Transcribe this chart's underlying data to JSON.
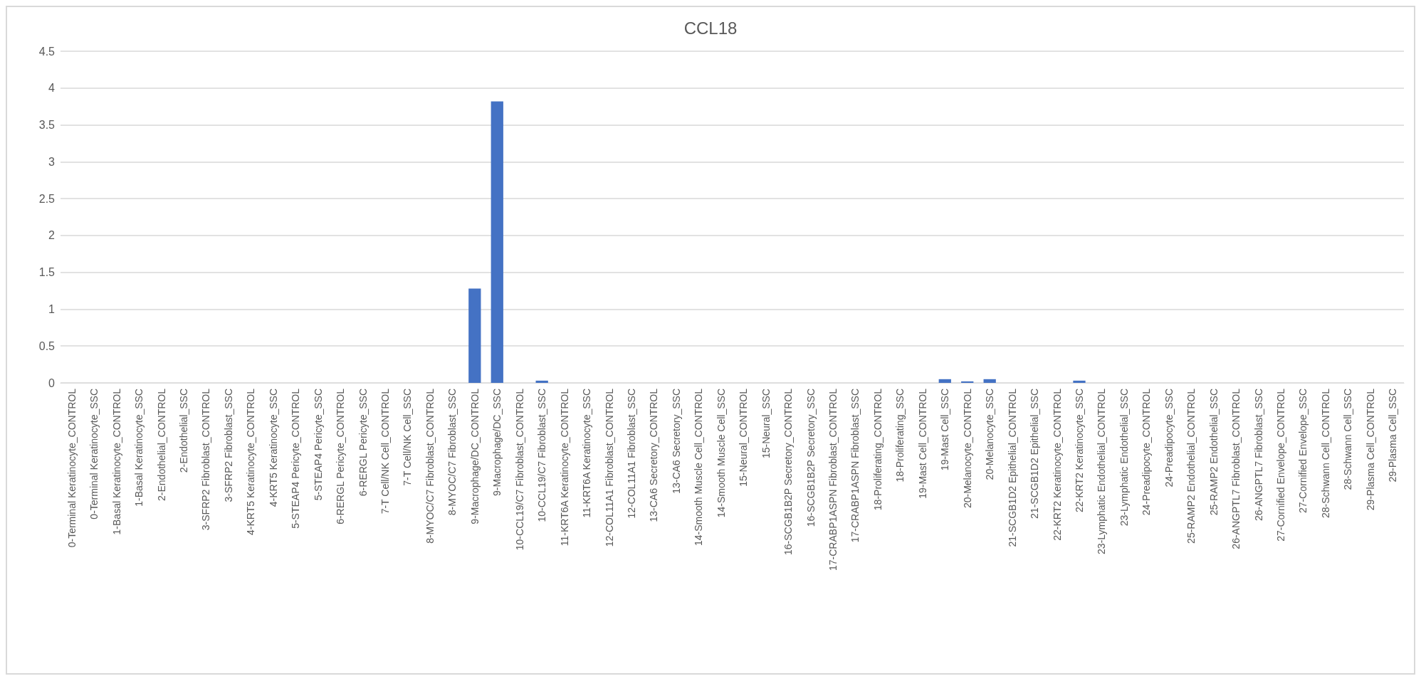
{
  "chart_data": {
    "type": "bar",
    "title": "CCL18",
    "categories": [
      "0-Terminal Keratinocyte_CONTROL",
      "0-Terminal Keratinocyte_SSC",
      "1-Basal Keratinocyte_CONTROL",
      "1-Basal Keratinocyte_SSC",
      "2-Endothelial_CONTROL",
      "2-Endothelial_SSC",
      "3-SFRP2 Fibroblast_CONTROL",
      "3-SFRP2 Fibroblast_SSC",
      "4-KRT5 Keratinocyte_CONTROL",
      "4-KRT5 Keratinocyte_SSC",
      "5-STEAP4 Pericyte_CONTROL",
      "5-STEAP4 Pericyte_SSC",
      "6-RERGL Pericyte_CONTROL",
      "6-RERGL Pericyte_SSC",
      "7-T Cell/NK Cell_CONTROL",
      "7-T Cell/NK Cell_SSC",
      "8-MYOC/C7 Fibroblast_CONTROL",
      "8-MYOC/C7 Fibroblast_SSC",
      "9-Macrophage/DC_CONTROL",
      "9-Macrophage/DC_SSC",
      "10-CCL19/C7 Fibroblast_CONTROL",
      "10-CCL19/C7 Fibroblast_SSC",
      "11-KRT6A Keratinocyte_CONTROL",
      "11-KRT6A Keratinocyte_SSC",
      "12-COL11A1 Fibroblast_CONTROL",
      "12-COL11A1 Fibroblast_SSC",
      "13-CA6 Secretory_CONTROL",
      "13-CA6 Secretory_SSC",
      "14-Smooth Muscle Cell_CONTROL",
      "14-Smooth Muscle Cell_SSC",
      "15-Neural_CONTROL",
      "15-Neural_SSC",
      "16-SCGB1B2P Secretory_CONTROL",
      "16-SCGB1B2P Secretory_SSC",
      "17-CRABP1ASPN Fibroblast_CONTROL",
      "17-CRABP1ASPN Fibroblast_SSC",
      "18-Proliferating_CONTROL",
      "18-Proliferating_SSC",
      "19-Mast Cell_CONTROL",
      "19-Mast Cell_SSC",
      "20-Melanocyte_CONTROL",
      "20-Melanocyte_SSC",
      "21-SCGB1D2 Epithelial_CONTROL",
      "21-SCGB1D2 Epithelial_SSC",
      "22-KRT2 Keratinocyte_CONTROL",
      "22-KRT2 Keratinocyte_SSC",
      "23-Lymphatic Endothelial_CONTROL",
      "23-Lymphatic Endothelial_SSC",
      "24-Preadipocyte_CONTROL",
      "24-Preadipocyte_SSC",
      "25-RAMP2 Endothelial_CONTROL",
      "25-RAMP2 Endothelial_SSC",
      "26-ANGPTL7 Fibroblast_CONTROL",
      "26-ANGPTL7 Fibroblast_SSC",
      "27-Cornified Envelope_CONTROL",
      "27-Cornified Envelope_SSC",
      "28-Schwann Cell_CONTROL",
      "28-Schwann Cell_SSC",
      "29-Plasma Cell_CONTROL",
      "29-Plasma Cell_SSC"
    ],
    "values": [
      0,
      0,
      0,
      0,
      0,
      0,
      0,
      0,
      0,
      0,
      0,
      0,
      0,
      0,
      0,
      0,
      0,
      0,
      1.28,
      3.82,
      0,
      0.03,
      0,
      0,
      0,
      0,
      0,
      0,
      0,
      0,
      0,
      0,
      0,
      0,
      0,
      0,
      0,
      0,
      0,
      0.05,
      0.02,
      0.05,
      0,
      0,
      0,
      0.03,
      0,
      0,
      0,
      0,
      0,
      0,
      0,
      0,
      0,
      0,
      0,
      0,
      0,
      0
    ],
    "color": "#4472c4",
    "ylim": [
      0,
      4.5
    ],
    "yticks": [
      0,
      0.5,
      1,
      1.5,
      2,
      2.5,
      3,
      3.5,
      4,
      4.5
    ],
    "grid": "y"
  }
}
